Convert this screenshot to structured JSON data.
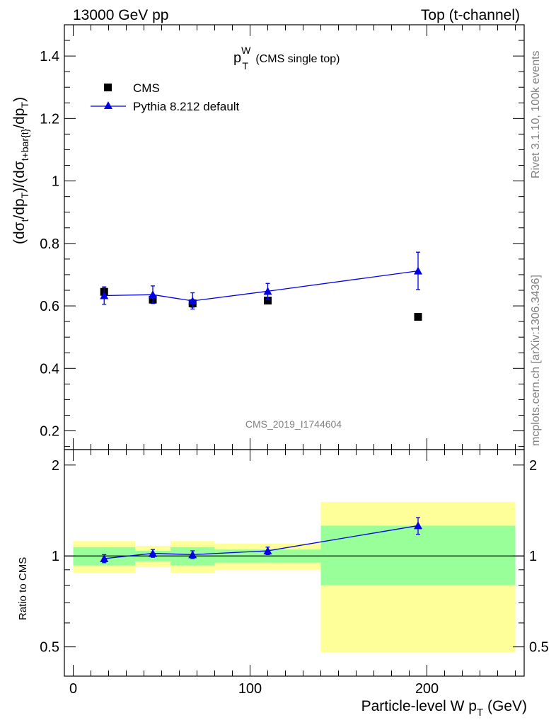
{
  "header": {
    "left": "13000 GeV pp",
    "right": "Top (t-channel)"
  },
  "side": {
    "rivet": "Rivet 3.1.10,  100k events",
    "mcplots": "mcplots.cern.ch [arXiv:1306.3436]"
  },
  "watermark": "CMS_2019_I1744604",
  "colors": {
    "mc": "#0000e6",
    "data": "#000000",
    "band_inner": "#99ff99",
    "band_outer": "#ffff99"
  },
  "chart_data": [
    {
      "type": "scatter",
      "title": {
        "base": "p",
        "sup": "W",
        "sub": "T",
        "suffix": " (CMS single top)"
      },
      "ylabel": {
        "p1": "(dσ",
        "s1": "t",
        "p2": "/dp",
        "s2": "T",
        "p3": ")/(dσ",
        "s3": "t+bar{t}",
        "p4": "/dp",
        "s4": "T",
        "p5": ")"
      },
      "xlim": [
        -5,
        255
      ],
      "ylim": [
        0.14,
        1.5
      ],
      "yticks": [
        0.2,
        0.4,
        0.6,
        0.8,
        1.0,
        1.2,
        1.4
      ],
      "ytick_labels": [
        "0.2",
        "0.4",
        "0.6",
        "0.8",
        "1",
        "1.2",
        "1.4"
      ],
      "legend": {
        "data_label": "CMS",
        "mc_label": "Pythia 8.212 default",
        "position": "top-left"
      },
      "bins": [
        [
          0,
          35
        ],
        [
          35,
          55
        ],
        [
          55,
          80
        ],
        [
          80,
          140
        ],
        [
          140,
          250
        ]
      ],
      "series": [
        {
          "name": "CMS",
          "x": [
            17.5,
            45,
            67.5,
            110,
            195
          ],
          "y": [
            0.645,
            0.62,
            0.608,
            0.617,
            0.565
          ],
          "yerr": [
            0.012,
            0.012,
            0.012,
            0.008,
            0.004
          ]
        },
        {
          "name": "Pythia 8.212 default",
          "x": [
            17.5,
            45,
            67.5,
            110,
            195
          ],
          "y": [
            0.633,
            0.636,
            0.616,
            0.647,
            0.712
          ],
          "yerr": [
            0.028,
            0.028,
            0.026,
            0.025,
            0.06
          ]
        }
      ]
    },
    {
      "type": "scatter",
      "ylabel": "Ratio to CMS",
      "xlabel": {
        "base": "Particle-level W p",
        "sub": "T",
        "suffix": " (GeV)"
      },
      "xlim": [
        -5,
        255
      ],
      "ylim": [
        0.4,
        2.25
      ],
      "yscale": "log",
      "xticks": [
        0,
        100,
        200
      ],
      "xtick_labels": [
        "0",
        "100",
        "200"
      ],
      "yticks": [
        0.5,
        1,
        2
      ],
      "ytick_labels": [
        "0.5",
        "1",
        "2"
      ],
      "bands": [
        {
          "x0": 0,
          "x1": 35,
          "inner": [
            0.93,
            1.07
          ],
          "outer": [
            0.88,
            1.12
          ]
        },
        {
          "x0": 35,
          "x1": 55,
          "inner": [
            0.96,
            1.04
          ],
          "outer": [
            0.92,
            1.08
          ]
        },
        {
          "x0": 55,
          "x1": 80,
          "inner": [
            0.93,
            1.07
          ],
          "outer": [
            0.88,
            1.12
          ]
        },
        {
          "x0": 80,
          "x1": 140,
          "inner": [
            0.95,
            1.05
          ],
          "outer": [
            0.9,
            1.1
          ]
        },
        {
          "x0": 140,
          "x1": 250,
          "inner": [
            0.8,
            1.26
          ],
          "outer": [
            0.48,
            1.51
          ]
        }
      ],
      "series": [
        {
          "name": "Pythia 8.212 default",
          "x": [
            17.5,
            45,
            67.5,
            110,
            195
          ],
          "y": [
            0.98,
            1.02,
            1.01,
            1.04,
            1.26
          ],
          "yerr": [
            0.03,
            0.03,
            0.03,
            0.03,
            0.08
          ]
        }
      ]
    }
  ]
}
